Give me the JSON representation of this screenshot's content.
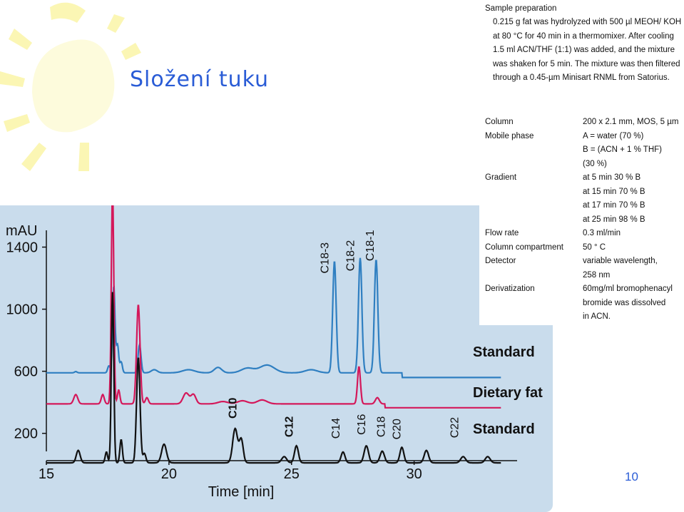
{
  "slide": {
    "title": "Složení tuku",
    "page_number": "10",
    "accent_color": "#2a5cd6"
  },
  "method": {
    "sample_prep_heading": "Sample preparation",
    "sample_prep_text": "0.215 g fat was hydrolyzed with 500 µl MEOH/ KOH at 80 °C for 40 min in a thermomixer. After cooling 1.5 ml ACN/THF (1:1) was added, and the mixture was shaken for 5 min. The mixture was then filtered through a 0.45-µm Minisart RNML from Satorius.",
    "rows": [
      {
        "label": "Column",
        "value": "200 x 2.1 mm, MOS, 5 µm"
      },
      {
        "label": "Mobile phase",
        "value": "A = water (70 %)"
      },
      {
        "label": "",
        "value": "B = (ACN + 1 % THF)"
      },
      {
        "label": "",
        "value": "(30 %)"
      },
      {
        "label": "Gradient",
        "value": "at 5 min 30 % B"
      },
      {
        "label": "",
        "value": "at 15 min 70 % B"
      },
      {
        "label": "",
        "value": "at 17 min 70 % B"
      },
      {
        "label": "",
        "value": "at 25 min 98 % B"
      },
      {
        "label": "Flow rate",
        "value": "0.3 ml/min"
      },
      {
        "label": "Column compartment",
        "value": "50 ° C"
      },
      {
        "label": "Detector",
        "value": "variable wavelength,"
      },
      {
        "label": "",
        "value": "258 nm"
      },
      {
        "label": "Derivatization",
        "value": "60mg/ml bromophenacyl"
      },
      {
        "label": "",
        "value": "bromide was dissolved"
      },
      {
        "label": "",
        "value": "in ACN."
      }
    ]
  },
  "chart_data": {
    "type": "line",
    "ylabel": "mAU",
    "xlabel": "Time [min]",
    "x_ticks": [
      15,
      20,
      25,
      30
    ],
    "y_ticks": [
      200,
      600,
      1000,
      1400
    ],
    "xlim": [
      15,
      34.2
    ],
    "ylim": [
      -100,
      1600
    ],
    "grid": false,
    "series": [
      {
        "name": "Standard",
        "color": "#2f7fc1",
        "baseline": 590,
        "peaks": [
          [
            16.2,
            8,
            0.05
          ],
          [
            17.55,
            45,
            0.05
          ],
          [
            17.75,
            560,
            0.05
          ],
          [
            17.9,
            180,
            0.05
          ],
          [
            18.05,
            70,
            0.05
          ],
          [
            18.8,
            180,
            0.06
          ],
          [
            19.4,
            20,
            0.12
          ],
          [
            20.8,
            20,
            0.25
          ],
          [
            22.0,
            35,
            0.15
          ],
          [
            23.2,
            30,
            0.25
          ],
          [
            24.0,
            50,
            0.3
          ],
          [
            25.8,
            20,
            0.25
          ],
          [
            26.75,
            720,
            0.07
          ],
          [
            27.8,
            740,
            0.07
          ],
          [
            28.45,
            730,
            0.07
          ]
        ],
        "steps": [
          [
            29.5,
            -30
          ]
        ]
      },
      {
        "name": "Dietary fat",
        "color": "#d4185a",
        "baseline": 390,
        "peaks": [
          [
            16.2,
            60,
            0.08
          ],
          [
            17.3,
            60,
            0.06
          ],
          [
            17.7,
            1380,
            0.05
          ],
          [
            17.95,
            90,
            0.05
          ],
          [
            18.75,
            640,
            0.07
          ],
          [
            19.1,
            40,
            0.06
          ],
          [
            20.7,
            70,
            0.12
          ],
          [
            21.0,
            60,
            0.1
          ],
          [
            22.2,
            15,
            0.2
          ],
          [
            23.0,
            20,
            0.2
          ],
          [
            23.8,
            25,
            0.2
          ],
          [
            27.75,
            240,
            0.06
          ],
          [
            28.5,
            40,
            0.08
          ]
        ],
        "steps": [
          [
            28.8,
            -25
          ]
        ]
      },
      {
        "name": "Standard",
        "color": "#111111",
        "baseline": 10,
        "peaks": [
          [
            16.3,
            80,
            0.08
          ],
          [
            17.45,
            70,
            0.05
          ],
          [
            17.7,
            1100,
            0.05
          ],
          [
            18.05,
            150,
            0.05
          ],
          [
            18.75,
            680,
            0.07
          ],
          [
            19.0,
            60,
            0.06
          ],
          [
            19.8,
            120,
            0.1
          ],
          [
            22.7,
            220,
            0.1
          ],
          [
            22.95,
            150,
            0.08
          ],
          [
            24.7,
            40,
            0.1
          ],
          [
            25.2,
            110,
            0.08
          ],
          [
            27.1,
            70,
            0.08
          ],
          [
            28.05,
            110,
            0.09
          ],
          [
            28.7,
            75,
            0.09
          ],
          [
            29.5,
            100,
            0.08
          ],
          [
            30.5,
            80,
            0.09
          ],
          [
            32.0,
            40,
            0.1
          ],
          [
            33.0,
            40,
            0.1
          ]
        ],
        "steps": []
      }
    ],
    "peak_labels": [
      {
        "text": "C18-3",
        "x": 26.5,
        "y": 1230,
        "color": "#111111",
        "bold": false
      },
      {
        "text": "C18-2",
        "x": 27.55,
        "y": 1245,
        "color": "#111111",
        "bold": false
      },
      {
        "text": "C18-1",
        "x": 28.35,
        "y": 1310,
        "color": "#111111",
        "bold": false
      },
      {
        "text": "C10",
        "x": 22.75,
        "y": 295,
        "color": "#111111",
        "bold": true
      },
      {
        "text": "C12",
        "x": 25.05,
        "y": 175,
        "color": "#111111",
        "bold": true
      },
      {
        "text": "C14",
        "x": 26.95,
        "y": 165,
        "color": "#111111",
        "bold": false
      },
      {
        "text": "C16",
        "x": 28.0,
        "y": 190,
        "color": "#111111",
        "bold": false
      },
      {
        "text": "C18",
        "x": 28.8,
        "y": 175,
        "color": "#111111",
        "bold": false
      },
      {
        "text": "C20",
        "x": 29.45,
        "y": 160,
        "color": "#111111",
        "bold": false
      },
      {
        "text": "C22",
        "x": 31.8,
        "y": 170,
        "color": "#111111",
        "bold": false
      }
    ]
  }
}
